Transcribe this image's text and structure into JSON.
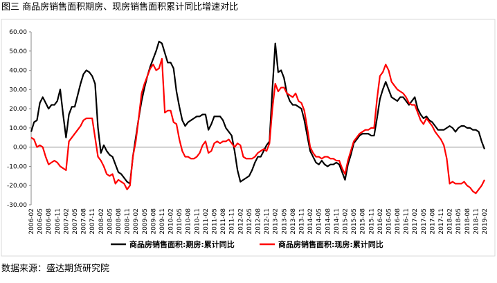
{
  "chart_data": {
    "type": "line",
    "title": "图三  商品房销售面积期房、现房销售面积累计同比增速对比",
    "source": "数据来源：盛达期货研究院",
    "categories": [
      "2006-02",
      null,
      null,
      "2006-05",
      null,
      null,
      "2006-08",
      null,
      null,
      "2006-11",
      null,
      null,
      "2007-02",
      null,
      null,
      "2007-05",
      null,
      null,
      "2007-08",
      null,
      null,
      "2007-11",
      null,
      null,
      "2008-02",
      null,
      null,
      "2008-05",
      null,
      null,
      "2008-08",
      null,
      null,
      "2008-11",
      null,
      null,
      "2009-02",
      null,
      null,
      "2009-05",
      null,
      null,
      "2009-08",
      null,
      null,
      "2009-11",
      null,
      null,
      "2010-02",
      null,
      null,
      "2010-05",
      null,
      null,
      "2010-08",
      null,
      null,
      "2010-11",
      null,
      null,
      "2011-02",
      null,
      null,
      "2011-05",
      null,
      null,
      "2011-08",
      null,
      null,
      "2011-11",
      null,
      null,
      "2012-02",
      null,
      null,
      "2012-05",
      null,
      null,
      "2012-08",
      null,
      null,
      "2012-11",
      null,
      null,
      "2013-02",
      null,
      null,
      "2013-05",
      null,
      null,
      "2013-08",
      null,
      null,
      "2013-11",
      null,
      null,
      "2014-02",
      null,
      null,
      "2014-05",
      null,
      null,
      "2014-08",
      null,
      null,
      "2014-11",
      null,
      null,
      "2015-02",
      null,
      null,
      "2015-05",
      null,
      null,
      "2015-08",
      null,
      null,
      "2015-11",
      null,
      null,
      "2016-02",
      null,
      null,
      "2016-05",
      null,
      null,
      "2016-08",
      null,
      null,
      "2016-11",
      null,
      null,
      "2017-02",
      null,
      null,
      "2017-05",
      null,
      null,
      "2017-08",
      null,
      null,
      "2017-11",
      null,
      null,
      "2018-02",
      null,
      null,
      "2018-05",
      null,
      null,
      "2018-08",
      null,
      null,
      "2018-11",
      null,
      null,
      "2019-02"
    ],
    "series": [
      {
        "name": "商品房销售面积:期房:累计同比",
        "color": "#000000",
        "values": [
          8,
          13,
          14,
          23,
          26,
          23,
          20,
          22,
          22,
          24,
          30,
          17,
          5,
          17,
          21,
          21,
          27,
          33,
          38,
          40,
          39,
          37,
          33,
          10,
          -3,
          1,
          -2,
          -4,
          -5,
          -9,
          -13,
          -14,
          -16,
          -18,
          -19,
          -5,
          5,
          15,
          24,
          31,
          37,
          42,
          46,
          50,
          55,
          54,
          49,
          44,
          44,
          41,
          29,
          21,
          14,
          11,
          13,
          14,
          15,
          16,
          16,
          17,
          17,
          9,
          12,
          16,
          16,
          16,
          14,
          10,
          8,
          6,
          -2,
          -12,
          -18,
          -17,
          -16,
          -15,
          -12,
          -8,
          -5,
          -5,
          -2,
          1,
          3,
          30,
          54,
          39,
          40,
          36,
          28,
          24,
          22,
          22,
          21,
          20,
          14,
          6,
          -2,
          -5,
          -8,
          -9,
          -7,
          -9,
          -10,
          -9,
          -9,
          -8,
          -9,
          -13,
          -17,
          -9,
          -4,
          2,
          4,
          6,
          7,
          7,
          7,
          6,
          6,
          15,
          25,
          30,
          34,
          30,
          26,
          25,
          24,
          26,
          26,
          24,
          22,
          24,
          26,
          20,
          17,
          15,
          16,
          14,
          13,
          11,
          9,
          9,
          9,
          10,
          11,
          10,
          8,
          10,
          11,
          11,
          10,
          10,
          9,
          9,
          8,
          3,
          -1
        ]
      },
      {
        "name": "商品房销售面积:现房:累计同比",
        "color": "#ff0000",
        "values": [
          5,
          4,
          0,
          1,
          0,
          -5,
          -9,
          -8,
          -7,
          -8,
          -10,
          -11,
          -12,
          3,
          5,
          7,
          9,
          11,
          14,
          15,
          15,
          15,
          5,
          -5,
          -7,
          -10,
          -14,
          -15,
          -14,
          -19,
          -17,
          -18,
          -19,
          -22,
          -20,
          -5,
          3,
          15,
          28,
          33,
          37,
          41,
          43,
          40,
          41,
          46,
          18,
          19,
          19,
          13,
          12,
          4,
          -2,
          -5,
          -5,
          -6,
          -6,
          -5,
          -3,
          1,
          3,
          -3,
          -2,
          2,
          3,
          2,
          3,
          3,
          4,
          2,
          0,
          2,
          1,
          -5,
          -6,
          -6,
          -6,
          -5,
          -3,
          -2,
          -1,
          -2,
          2,
          20,
          33,
          29,
          31,
          31,
          28,
          27,
          26,
          28,
          24,
          23,
          19,
          10,
          0,
          -3,
          -5,
          -5,
          -6,
          -5,
          -5,
          -6,
          -6,
          -7,
          -7,
          -11,
          -14,
          -7,
          -2,
          3,
          5,
          7,
          8,
          9,
          9,
          10,
          10,
          25,
          37,
          39,
          43,
          40,
          34,
          32,
          30,
          29,
          28,
          26,
          23,
          22,
          22,
          18,
          14,
          12,
          15,
          13,
          11,
          8,
          6,
          4,
          1,
          -6,
          -19,
          -18,
          -19,
          -19,
          -19,
          -18,
          -20,
          -21,
          -23,
          -24,
          -22,
          -20,
          -17
        ]
      }
    ],
    "ylim": [
      -30,
      60
    ],
    "yticks": [
      {
        "value": -30,
        "label": "-30.00"
      },
      {
        "value": -20,
        "label": "-20.00"
      },
      {
        "value": -10,
        "label": "-10.00"
      },
      {
        "value": 0,
        "label": "0.00"
      },
      {
        "value": 10,
        "label": "10.00"
      },
      {
        "value": 20,
        "label": "20.00"
      },
      {
        "value": 30,
        "label": "30.00"
      },
      {
        "value": 40,
        "label": "40.00"
      },
      {
        "value": 50,
        "label": "50.00"
      },
      {
        "value": 60,
        "label": "60.00"
      }
    ],
    "grid": false,
    "legend": "bottom"
  }
}
